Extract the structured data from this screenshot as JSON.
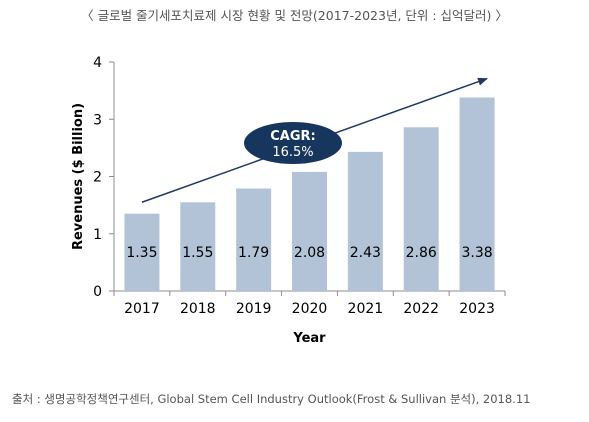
{
  "header": {
    "title": "〈 글로벌 줄기세포치료제 시장 현황 및 전망(2017-2023년, 단위 : 십억달러) 〉"
  },
  "chart_data": {
    "type": "bar",
    "categories": [
      "2017",
      "2018",
      "2019",
      "2020",
      "2021",
      "2022",
      "2023"
    ],
    "values": [
      1.35,
      1.55,
      1.79,
      2.08,
      2.43,
      2.86,
      3.38
    ],
    "value_labels": [
      "1.35",
      "1.55",
      "1.79",
      "2.08",
      "2.43",
      "2.86",
      "3.38"
    ],
    "xlabel": "Year",
    "ylabel": "Revenues ($ Billion)",
    "ylim": [
      0,
      4
    ],
    "yticks": [
      "0",
      "1",
      "2",
      "3",
      "4"
    ],
    "grid": false,
    "colors": {
      "bar": "#b3c3d7",
      "axis": "#8c8c8c",
      "annotation": "#17365d",
      "trend_arrow": "#1f3864"
    },
    "annotation": {
      "line1": "CAGR:",
      "line2": "16.5%"
    },
    "trend_arrow": {
      "from": [
        2017,
        1.55
      ],
      "to": [
        2023,
        3.71
      ]
    }
  },
  "footer": {
    "source": "출처 : 생명공학정책연구센터, Global Stem Cell Industry Outlook(Frost & Sullivan 분석), 2018.11"
  }
}
